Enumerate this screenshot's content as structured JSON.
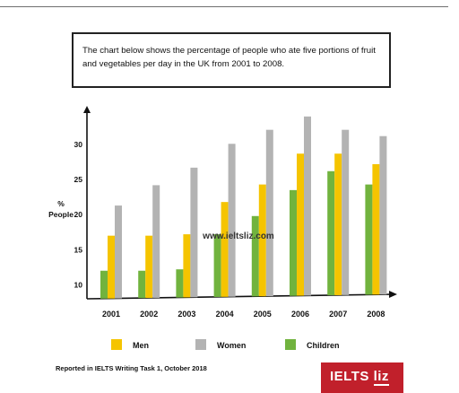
{
  "description_box": {
    "line1": "The chart below shows the percentage of people who ate five portions of fruit",
    "line2": "and vegetables per day in the UK from 2001 to 2008."
  },
  "chart_data": {
    "type": "bar",
    "title": "",
    "ylabel_line1": "%",
    "ylabel_line2": "People",
    "xlabel": "",
    "categories": [
      "2001",
      "2002",
      "2003",
      "2004",
      "2005",
      "2006",
      "2007",
      "2008"
    ],
    "series": [
      {
        "name": "Men",
        "color": "#f5c400",
        "values": [
          17,
          17,
          17.2,
          21.8,
          24.3,
          28.7,
          28.7,
          27.2
        ]
      },
      {
        "name": "Women",
        "color": "#b3b3b3",
        "values": [
          21.3,
          24.2,
          26.7,
          30.1,
          32.1,
          34.0,
          32.1,
          31.2
        ]
      },
      {
        "name": "Children",
        "color": "#71b33e",
        "values": [
          12,
          12,
          12.2,
          17.2,
          19.8,
          23.5,
          26.2,
          24.3
        ]
      }
    ],
    "y_ticks": [
      "10",
      "15",
      "20",
      "25",
      "30"
    ],
    "ylim": [
      8,
      35
    ],
    "grid": false,
    "legend_position": "bottom",
    "watermark": "www.ieltsliz.com"
  },
  "footer": {
    "source": "Reported in IELTS Writing Task 1, October 2018",
    "logo_main": "IELTS",
    "logo_accent": "liz"
  }
}
